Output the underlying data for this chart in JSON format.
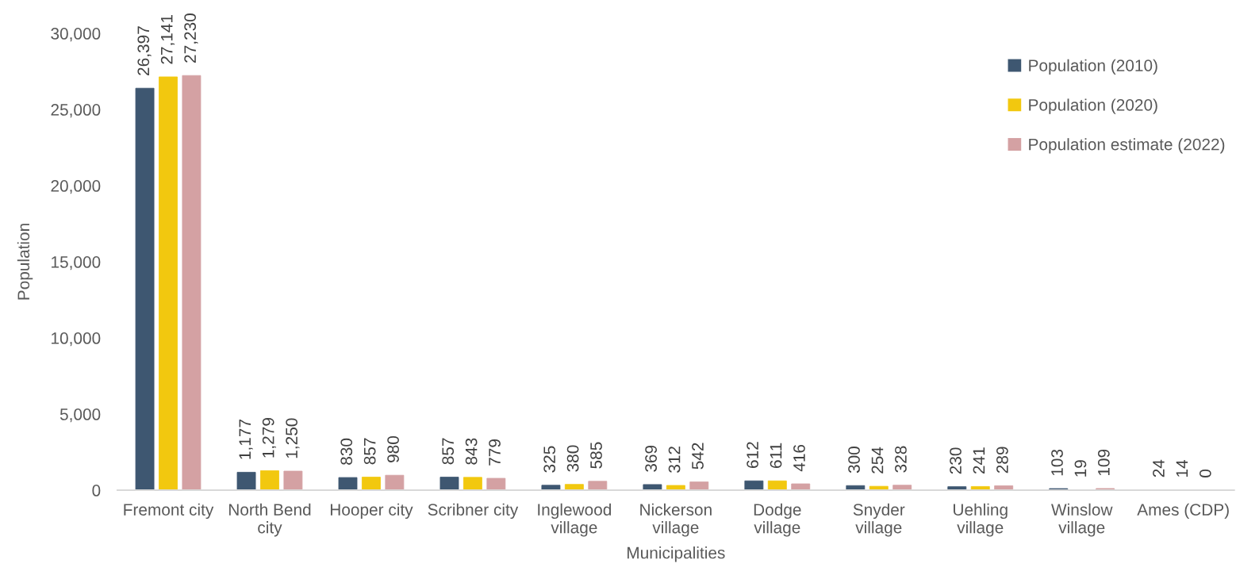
{
  "chart_data": {
    "type": "bar",
    "xlabel": "Municipalities",
    "ylabel": "Population",
    "categories": [
      "Fremont city",
      "North Bend city",
      "Hooper city",
      "Scribner city",
      "Inglewood village",
      "Nickerson village",
      "Dodge village",
      "Snyder village",
      "Uehling village",
      "Winslow village",
      "Ames (CDP)"
    ],
    "series": [
      {
        "name": "Population (2010)",
        "color": "#3e5771",
        "values": [
          26397,
          1177,
          830,
          857,
          325,
          369,
          612,
          300,
          230,
          103,
          24
        ],
        "value_labels": [
          "26,397",
          "1,177",
          "830",
          "857",
          "325",
          "369",
          "612",
          "300",
          "230",
          "103",
          "24"
        ]
      },
      {
        "name": "Population (2020)",
        "color": "#f2c80f",
        "values": [
          27141,
          1279,
          857,
          843,
          380,
          312,
          611,
          254,
          241,
          19,
          14
        ],
        "value_labels": [
          "27,141",
          "1,279",
          "857",
          "843",
          "380",
          "312",
          "611",
          "254",
          "241",
          "19",
          "14"
        ]
      },
      {
        "name": "Population estimate (2022)",
        "color": "#d4a1a3",
        "values": [
          27230,
          1250,
          980,
          779,
          585,
          542,
          416,
          328,
          289,
          109,
          0
        ],
        "value_labels": [
          "27,230",
          "1,250",
          "980",
          "779",
          "585",
          "542",
          "416",
          "328",
          "289",
          "109",
          "0"
        ]
      }
    ],
    "ylim": [
      0,
      30000
    ],
    "yticks": [
      0,
      {
        "value": 5000,
        "label": "5,000"
      },
      {
        "value": 10000,
        "label": "10,000"
      },
      {
        "value": 15000,
        "label": "15,000"
      },
      {
        "value": 20000,
        "label": "20,000"
      },
      {
        "value": 25000,
        "label": "25,000"
      },
      {
        "value": 30000,
        "label": "30,000"
      }
    ],
    "legend": "top right"
  }
}
